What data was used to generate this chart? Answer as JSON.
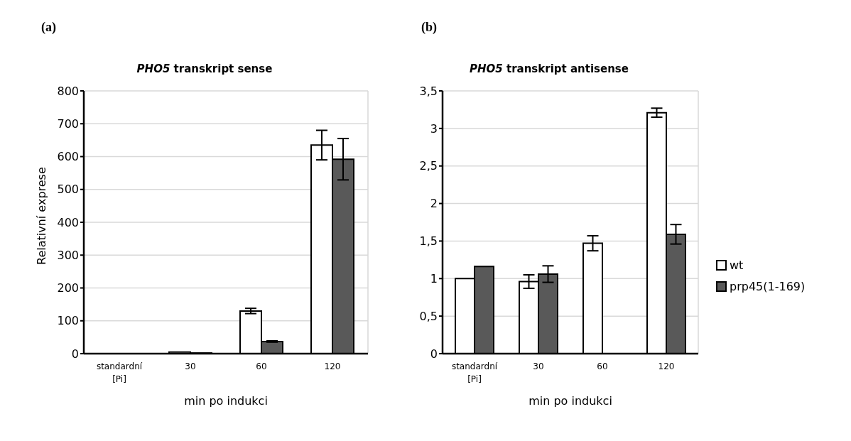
{
  "chart_data": [
    {
      "type": "bar",
      "title": "PHO5 transkript sense",
      "annotations": [
        "(a)"
      ],
      "xlabel": "min po indukci",
      "ylabel": "Relativní exprese",
      "categories": [
        "standardní [Pi]",
        "30",
        "60",
        "120"
      ],
      "series": [
        {
          "color": "#ffffff",
          "values": [
            null,
            5,
            130,
            635
          ],
          "errors": [
            null,
            null,
            8,
            45
          ]
        },
        {
          "color": "#595959",
          "values": [
            null,
            2,
            37,
            592
          ],
          "errors": [
            null,
            null,
            2,
            63
          ]
        }
      ],
      "ylim": [
        0,
        800
      ],
      "yticks": [
        0,
        100,
        200,
        300,
        400,
        500,
        600,
        700,
        800
      ],
      "grid": "y",
      "legend": false
    },
    {
      "type": "bar",
      "title": "PHO5 transkript antisense",
      "annotations": [
        "(b)"
      ],
      "xlabel": "min po indukci",
      "categories": [
        "standardní [Pi]",
        "30",
        "60",
        "120"
      ],
      "series": [
        {
          "name": "wt",
          "color": "#ffffff",
          "values": [
            1,
            0.96,
            1.47,
            3.21
          ],
          "errors": [
            null,
            0.09,
            0.1,
            0.06
          ]
        },
        {
          "name": "prp45(1-169)",
          "color": "#595959",
          "values": [
            1.16,
            1.06,
            null,
            1.59
          ],
          "errors": [
            null,
            0.11,
            null,
            0.13
          ]
        }
      ],
      "ylim": [
        0,
        3.5
      ],
      "yticks": [
        0,
        {
          "value": 0.5,
          "label": "0,5"
        },
        1,
        {
          "value": 1.5,
          "label": "1,5"
        },
        2,
        {
          "value": 2.5,
          "label": "2,5"
        },
        3,
        {
          "value": 3.5,
          "label": "3,5"
        }
      ],
      "grid": "y",
      "legend": "right"
    }
  ]
}
